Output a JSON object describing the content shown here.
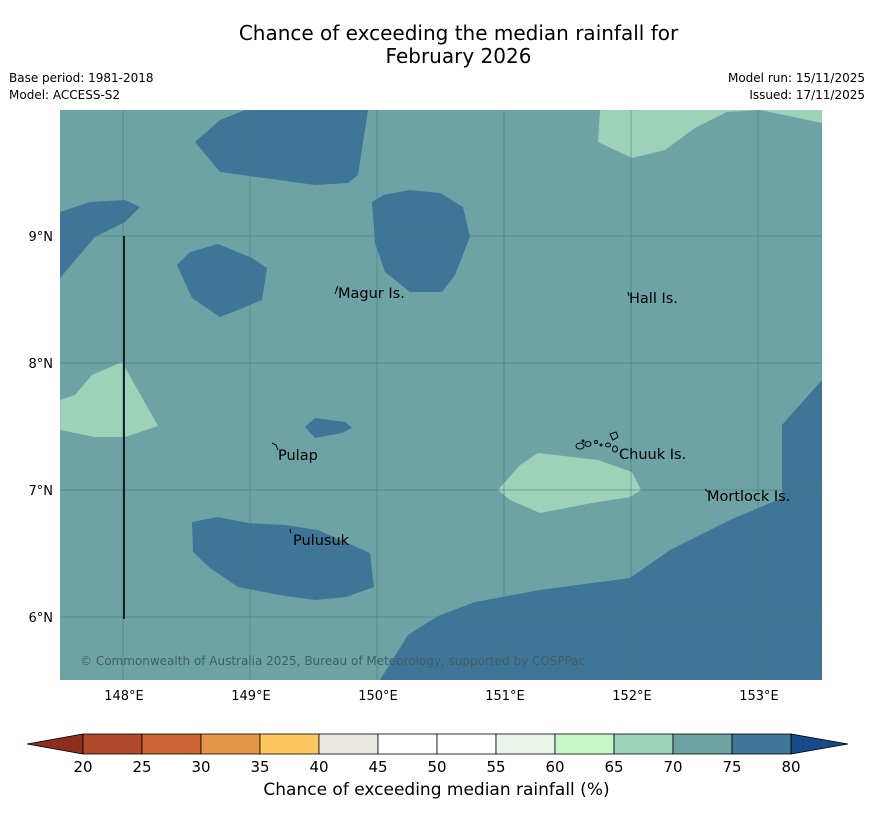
{
  "title_line1": "Chance of exceeding the median rainfall for",
  "title_line2": "February 2026",
  "base_period": "Base period: 1981-2018",
  "model": "Model: ACCESS-S2",
  "model_run": "Model run: 15/11/2025",
  "issued": "Issued: 17/11/2025",
  "copyright": "© Commonwealth of Australia 2025, Bureau of Meteorology, supported by COSPPac",
  "lon_ticks": [
    "148°E",
    "149°E",
    "150°E",
    "151°E",
    "152°E",
    "153°E"
  ],
  "lat_ticks": [
    "9°N",
    "8°N",
    "7°N",
    "6°N"
  ],
  "places": [
    "Magur Is.",
    "Hall Is.",
    "Pulap",
    "Chuuk Is.",
    "Mortlock Is.",
    "Pulusuk"
  ],
  "colorbar": {
    "title": "Chance of exceeding median rainfall (%)",
    "ticks": [
      "20",
      "25",
      "30",
      "35",
      "40",
      "45",
      "50",
      "55",
      "60",
      "65",
      "70",
      "75",
      "80"
    ],
    "colors": [
      "#b0482a",
      "#cf6535",
      "#e59648",
      "#fdc761",
      "#ece8e4",
      "#ffffff",
      "#ffffff",
      "#eaf4ea",
      "#c6f7c8",
      "#9dd1b8",
      "#6ea3a6",
      "#3f7596"
    ],
    "under_color": "#8c2d20",
    "over_color": "#174a88"
  },
  "map_colors": {
    "class_70_75": "#6ea3a6",
    "class_75_80": "#3f7596",
    "class_65_70": "#9dd1b8"
  }
}
